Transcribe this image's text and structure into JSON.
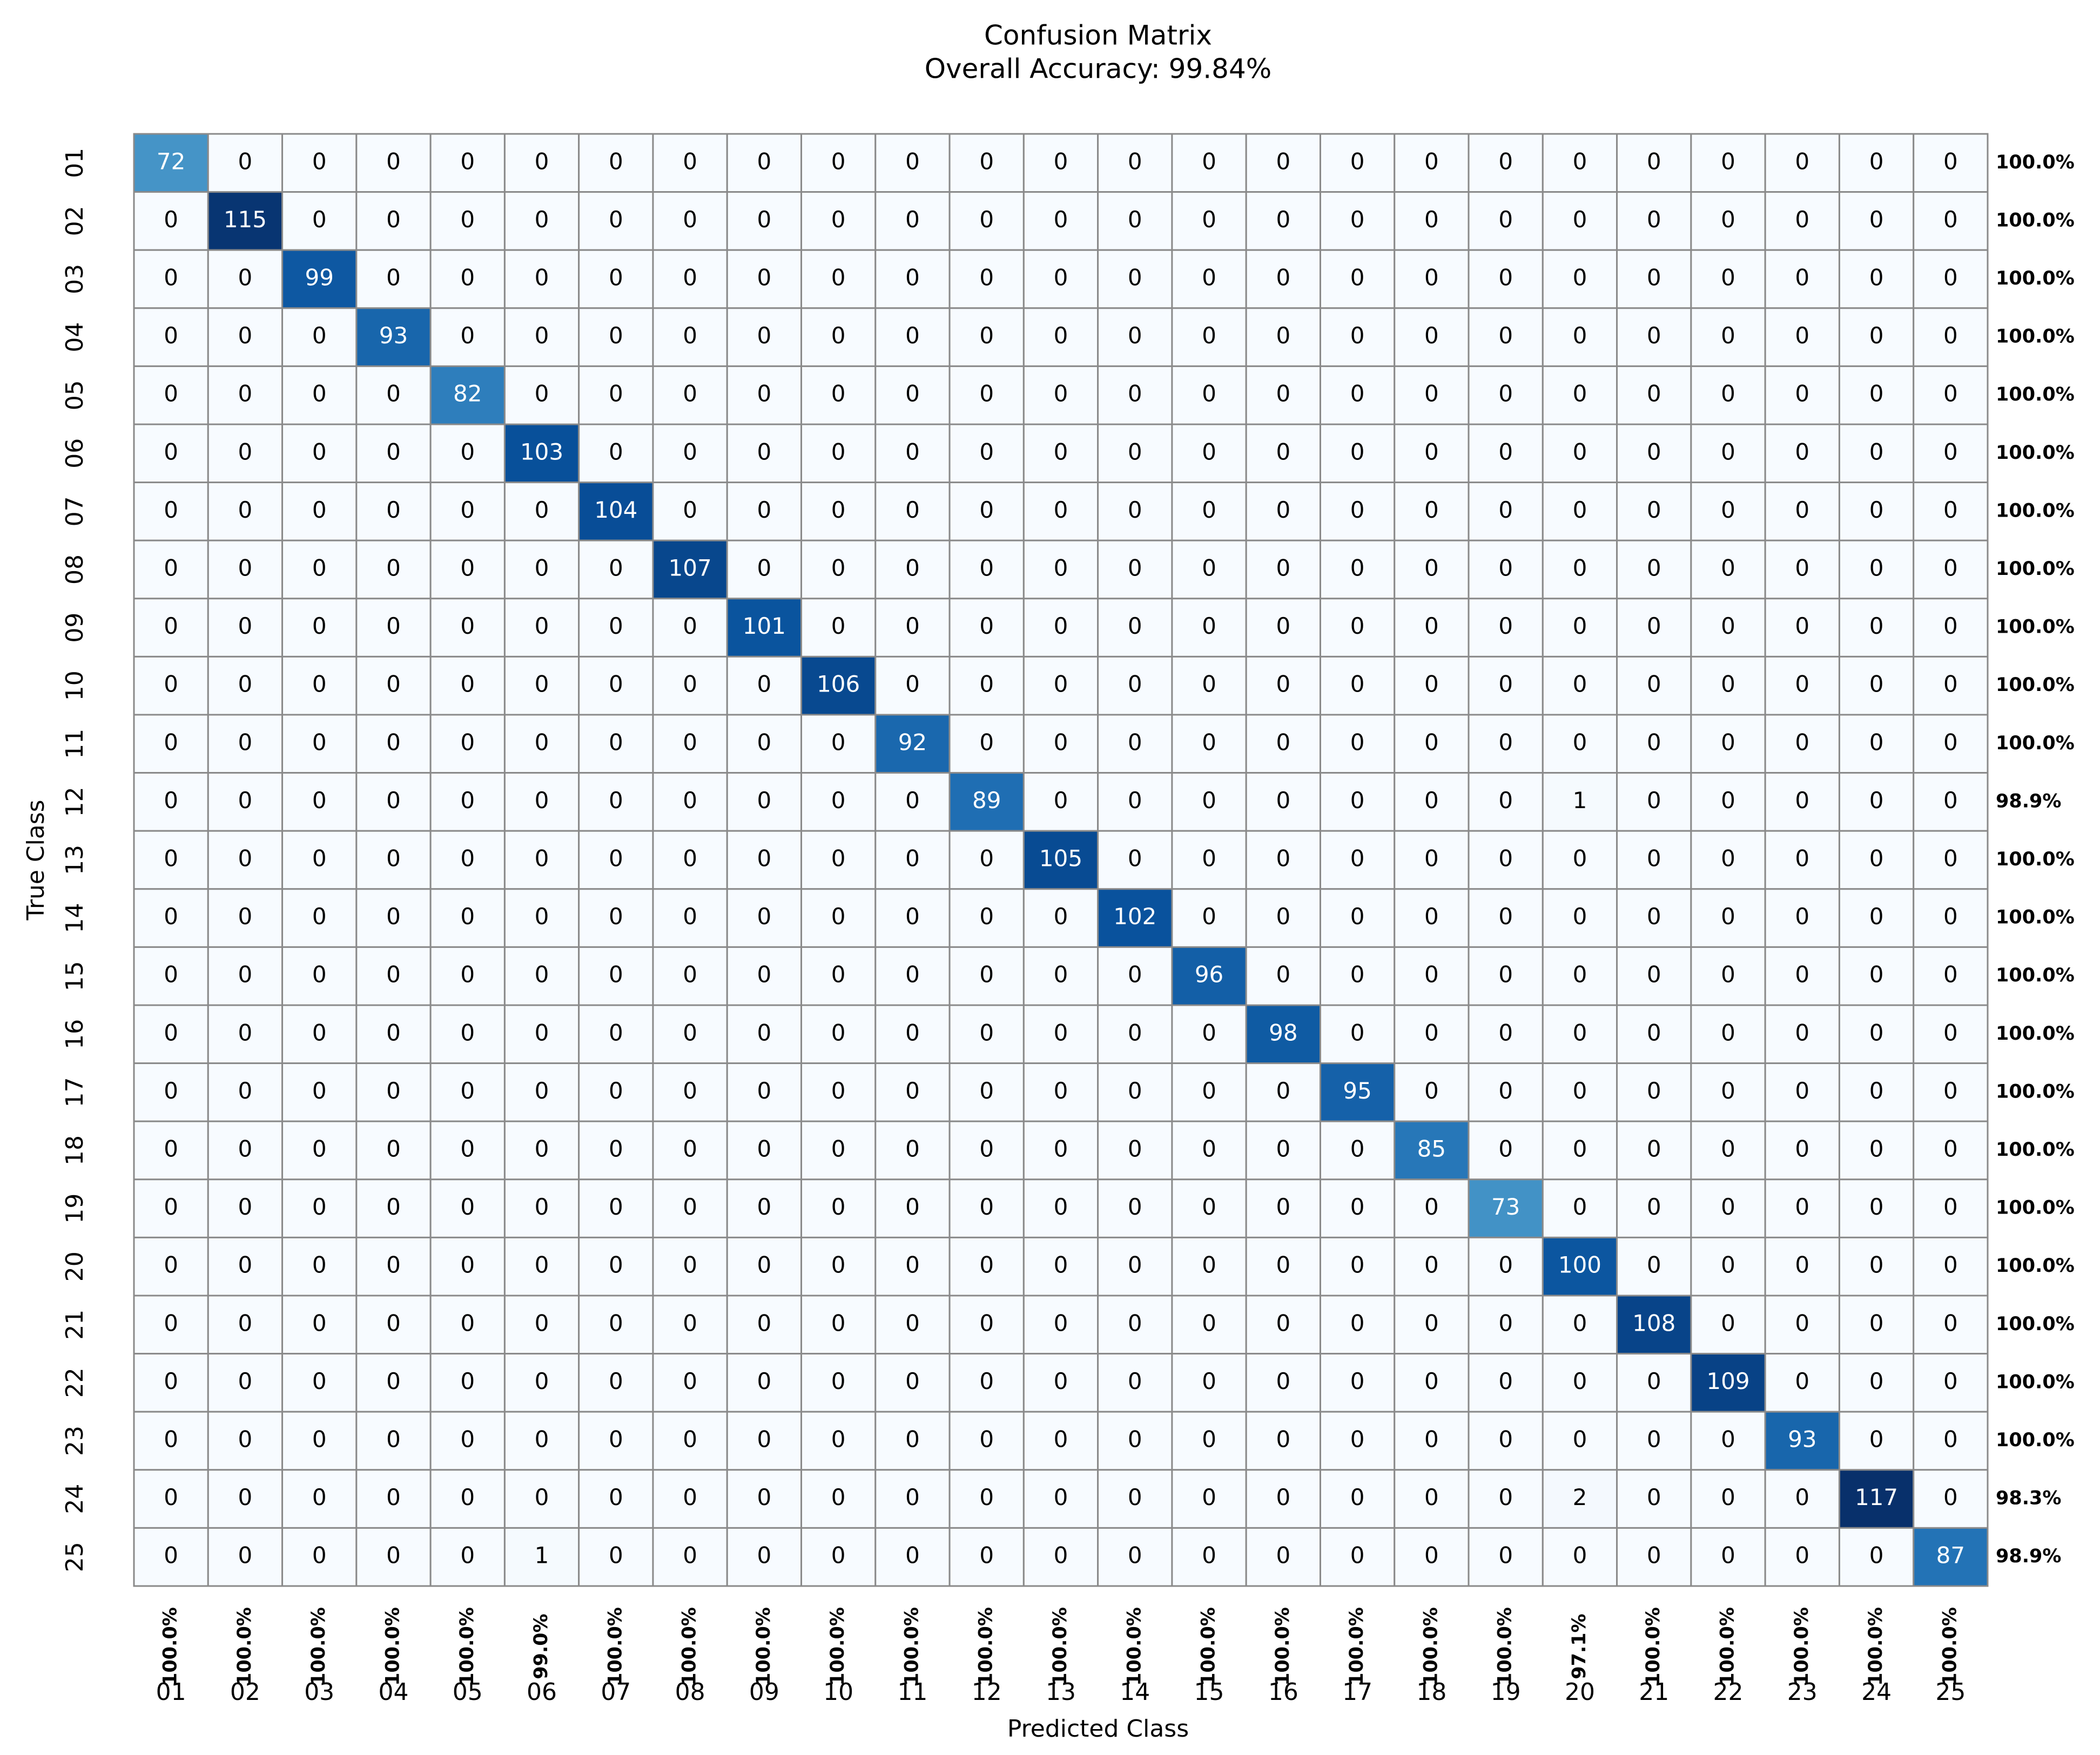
{
  "chart_data": {
    "type": "heatmap",
    "title": "Confusion Matrix",
    "subtitle": "Overall Accuracy: 99.84%",
    "x_label": "Predicted Class",
    "y_label": "True Class",
    "x_categories": [
      "01",
      "02",
      "03",
      "04",
      "05",
      "06",
      "07",
      "08",
      "09",
      "10",
      "11",
      "12",
      "13",
      "14",
      "15",
      "16",
      "17",
      "18",
      "19",
      "20",
      "21",
      "22",
      "23",
      "24",
      "25"
    ],
    "y_categories": [
      "01",
      "02",
      "03",
      "04",
      "05",
      "06",
      "07",
      "08",
      "09",
      "10",
      "11",
      "12",
      "13",
      "14",
      "15",
      "16",
      "17",
      "18",
      "19",
      "20",
      "21",
      "22",
      "23",
      "24",
      "25"
    ],
    "values": [
      [
        72,
        0,
        0,
        0,
        0,
        0,
        0,
        0,
        0,
        0,
        0,
        0,
        0,
        0,
        0,
        0,
        0,
        0,
        0,
        0,
        0,
        0,
        0,
        0,
        0
      ],
      [
        0,
        115,
        0,
        0,
        0,
        0,
        0,
        0,
        0,
        0,
        0,
        0,
        0,
        0,
        0,
        0,
        0,
        0,
        0,
        0,
        0,
        0,
        0,
        0,
        0
      ],
      [
        0,
        0,
        99,
        0,
        0,
        0,
        0,
        0,
        0,
        0,
        0,
        0,
        0,
        0,
        0,
        0,
        0,
        0,
        0,
        0,
        0,
        0,
        0,
        0,
        0
      ],
      [
        0,
        0,
        0,
        93,
        0,
        0,
        0,
        0,
        0,
        0,
        0,
        0,
        0,
        0,
        0,
        0,
        0,
        0,
        0,
        0,
        0,
        0,
        0,
        0,
        0
      ],
      [
        0,
        0,
        0,
        0,
        82,
        0,
        0,
        0,
        0,
        0,
        0,
        0,
        0,
        0,
        0,
        0,
        0,
        0,
        0,
        0,
        0,
        0,
        0,
        0,
        0
      ],
      [
        0,
        0,
        0,
        0,
        0,
        103,
        0,
        0,
        0,
        0,
        0,
        0,
        0,
        0,
        0,
        0,
        0,
        0,
        0,
        0,
        0,
        0,
        0,
        0,
        0
      ],
      [
        0,
        0,
        0,
        0,
        0,
        0,
        104,
        0,
        0,
        0,
        0,
        0,
        0,
        0,
        0,
        0,
        0,
        0,
        0,
        0,
        0,
        0,
        0,
        0,
        0
      ],
      [
        0,
        0,
        0,
        0,
        0,
        0,
        0,
        107,
        0,
        0,
        0,
        0,
        0,
        0,
        0,
        0,
        0,
        0,
        0,
        0,
        0,
        0,
        0,
        0,
        0
      ],
      [
        0,
        0,
        0,
        0,
        0,
        0,
        0,
        0,
        101,
        0,
        0,
        0,
        0,
        0,
        0,
        0,
        0,
        0,
        0,
        0,
        0,
        0,
        0,
        0,
        0
      ],
      [
        0,
        0,
        0,
        0,
        0,
        0,
        0,
        0,
        0,
        106,
        0,
        0,
        0,
        0,
        0,
        0,
        0,
        0,
        0,
        0,
        0,
        0,
        0,
        0,
        0
      ],
      [
        0,
        0,
        0,
        0,
        0,
        0,
        0,
        0,
        0,
        0,
        92,
        0,
        0,
        0,
        0,
        0,
        0,
        0,
        0,
        0,
        0,
        0,
        0,
        0,
        0
      ],
      [
        0,
        0,
        0,
        0,
        0,
        0,
        0,
        0,
        0,
        0,
        0,
        89,
        0,
        0,
        0,
        0,
        0,
        0,
        0,
        1,
        0,
        0,
        0,
        0,
        0
      ],
      [
        0,
        0,
        0,
        0,
        0,
        0,
        0,
        0,
        0,
        0,
        0,
        0,
        105,
        0,
        0,
        0,
        0,
        0,
        0,
        0,
        0,
        0,
        0,
        0,
        0
      ],
      [
        0,
        0,
        0,
        0,
        0,
        0,
        0,
        0,
        0,
        0,
        0,
        0,
        0,
        102,
        0,
        0,
        0,
        0,
        0,
        0,
        0,
        0,
        0,
        0,
        0
      ],
      [
        0,
        0,
        0,
        0,
        0,
        0,
        0,
        0,
        0,
        0,
        0,
        0,
        0,
        0,
        96,
        0,
        0,
        0,
        0,
        0,
        0,
        0,
        0,
        0,
        0
      ],
      [
        0,
        0,
        0,
        0,
        0,
        0,
        0,
        0,
        0,
        0,
        0,
        0,
        0,
        0,
        0,
        98,
        0,
        0,
        0,
        0,
        0,
        0,
        0,
        0,
        0
      ],
      [
        0,
        0,
        0,
        0,
        0,
        0,
        0,
        0,
        0,
        0,
        0,
        0,
        0,
        0,
        0,
        0,
        95,
        0,
        0,
        0,
        0,
        0,
        0,
        0,
        0
      ],
      [
        0,
        0,
        0,
        0,
        0,
        0,
        0,
        0,
        0,
        0,
        0,
        0,
        0,
        0,
        0,
        0,
        0,
        85,
        0,
        0,
        0,
        0,
        0,
        0,
        0
      ],
      [
        0,
        0,
        0,
        0,
        0,
        0,
        0,
        0,
        0,
        0,
        0,
        0,
        0,
        0,
        0,
        0,
        0,
        0,
        73,
        0,
        0,
        0,
        0,
        0,
        0
      ],
      [
        0,
        0,
        0,
        0,
        0,
        0,
        0,
        0,
        0,
        0,
        0,
        0,
        0,
        0,
        0,
        0,
        0,
        0,
        0,
        100,
        0,
        0,
        0,
        0,
        0
      ],
      [
        0,
        0,
        0,
        0,
        0,
        0,
        0,
        0,
        0,
        0,
        0,
        0,
        0,
        0,
        0,
        0,
        0,
        0,
        0,
        0,
        108,
        0,
        0,
        0,
        0
      ],
      [
        0,
        0,
        0,
        0,
        0,
        0,
        0,
        0,
        0,
        0,
        0,
        0,
        0,
        0,
        0,
        0,
        0,
        0,
        0,
        0,
        0,
        109,
        0,
        0,
        0
      ],
      [
        0,
        0,
        0,
        0,
        0,
        0,
        0,
        0,
        0,
        0,
        0,
        0,
        0,
        0,
        0,
        0,
        0,
        0,
        0,
        0,
        0,
        0,
        93,
        0,
        0
      ],
      [
        0,
        0,
        0,
        0,
        0,
        0,
        0,
        0,
        0,
        0,
        0,
        0,
        0,
        0,
        0,
        0,
        0,
        0,
        0,
        2,
        0,
        0,
        0,
        117,
        0
      ],
      [
        0,
        0,
        0,
        0,
        0,
        1,
        0,
        0,
        0,
        0,
        0,
        0,
        0,
        0,
        0,
        0,
        0,
        0,
        0,
        0,
        0,
        0,
        0,
        0,
        87
      ]
    ],
    "row_accuracy": {
      "values": [
        100.0,
        100.0,
        100.0,
        100.0,
        100.0,
        100.0,
        100.0,
        100.0,
        100.0,
        100.0,
        100.0,
        98.9,
        100.0,
        100.0,
        100.0,
        100.0,
        100.0,
        100.0,
        100.0,
        100.0,
        100.0,
        100.0,
        100.0,
        98.3,
        98.9
      ],
      "value_labels": [
        "100.0%",
        "100.0%",
        "100.0%",
        "100.0%",
        "100.0%",
        "100.0%",
        "100.0%",
        "100.0%",
        "100.0%",
        "100.0%",
        "100.0%",
        "98.9%",
        "100.0%",
        "100.0%",
        "100.0%",
        "100.0%",
        "100.0%",
        "100.0%",
        "100.0%",
        "100.0%",
        "100.0%",
        "100.0%",
        "100.0%",
        "98.3%",
        "98.9%"
      ]
    },
    "column_accuracy": {
      "values": [
        100.0,
        100.0,
        100.0,
        100.0,
        100.0,
        99.0,
        100.0,
        100.0,
        100.0,
        100.0,
        100.0,
        100.0,
        100.0,
        100.0,
        100.0,
        100.0,
        100.0,
        100.0,
        100.0,
        97.1,
        100.0,
        100.0,
        100.0,
        100.0,
        100.0
      ],
      "value_labels": [
        "100.0%",
        "100.0%",
        "100.0%",
        "100.0%",
        "100.0%",
        "99.0%",
        "100.0%",
        "100.0%",
        "100.0%",
        "100.0%",
        "100.0%",
        "100.0%",
        "100.0%",
        "100.0%",
        "100.0%",
        "100.0%",
        "100.0%",
        "100.0%",
        "100.0%",
        "97.1%",
        "100.0%",
        "100.0%",
        "100.0%",
        "100.0%",
        "100.0%"
      ]
    },
    "colormap": [
      "#f7fbff",
      "#deebf7",
      "#c6dbef",
      "#9ecae1",
      "#6baed6",
      "#4292c6",
      "#2171b5",
      "#08519c",
      "#08306b"
    ],
    "grid_color": "#8a8a8a"
  }
}
